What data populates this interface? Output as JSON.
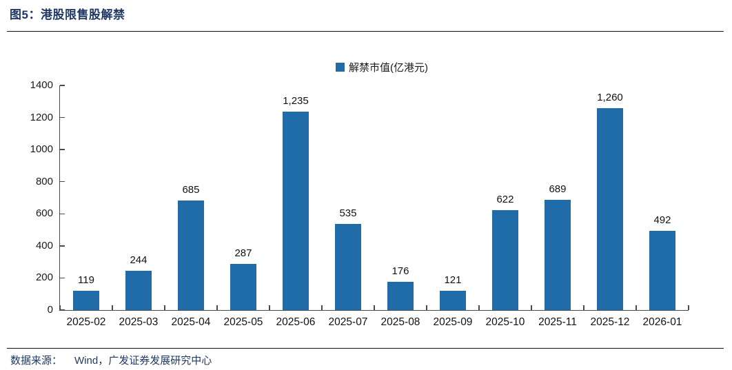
{
  "page": {
    "title": "图5：港股限售股解禁",
    "footer": {
      "source_label": "数据来源：",
      "source_text": "Wind，广发证券发展研究中心"
    }
  },
  "colors": {
    "bar": "#1F6CA8",
    "title_text": "#1F3864",
    "axis": "#4a4a4a",
    "rule": "#111111"
  },
  "chart_data": {
    "type": "bar",
    "title": "",
    "legend": [
      "解禁市值(亿港元)"
    ],
    "legend_position": "top-center",
    "categories": [
      "2025-02",
      "2025-03",
      "2025-04",
      "2025-05",
      "2025-06",
      "2025-07",
      "2025-08",
      "2025-09",
      "2025-10",
      "2025-11",
      "2025-12",
      "2026-01"
    ],
    "values": [
      119,
      244,
      685,
      287,
      1235,
      535,
      176,
      121,
      622,
      689,
      1260,
      492
    ],
    "value_labels": [
      "119",
      "244",
      "685",
      "287",
      "1,235",
      "535",
      "176",
      "121",
      "622",
      "689",
      "1,260",
      "492"
    ],
    "xlabel": "",
    "ylabel": "",
    "ylim": [
      0,
      1400
    ],
    "yticks": [
      0,
      200,
      400,
      600,
      800,
      1000,
      1200,
      1400
    ],
    "grid": false,
    "bar_color": "#1F6CA8"
  }
}
